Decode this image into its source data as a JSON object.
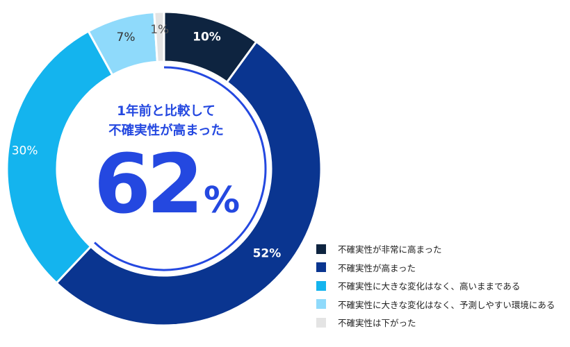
{
  "chart_data": {
    "type": "donut",
    "title": "",
    "segments": [
      {
        "label": "不確実性が非常に高まった",
        "value": 10,
        "display": "10%",
        "color": "#0e2440"
      },
      {
        "label": "不確実性が高まった",
        "value": 52,
        "display": "52%",
        "color": "#0a3590"
      },
      {
        "label": "不確実性に大きな変化はなく、高いままである",
        "value": 30,
        "display": "30%",
        "color": "#14b4ee"
      },
      {
        "label": "不確実性に大きな変化はなく、予測しやすい環境にある",
        "value": 7,
        "display": "7%",
        "color": "#8fdafb"
      },
      {
        "label": "不確実性は下がった",
        "value": 1,
        "display": "1%",
        "color": "#e4e4e4"
      }
    ],
    "center": {
      "line1": "1年前と比較して",
      "line2": "不確実性が高まった",
      "value": "62",
      "unit": "%"
    },
    "highlight_arc_color": "#2448e0",
    "legend_position": "bottom-right"
  }
}
